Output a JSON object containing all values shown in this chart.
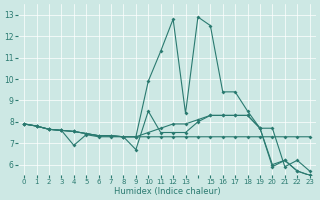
{
  "xlabel": "Humidex (Indice chaleur)",
  "bg_color": "#cde8e4",
  "line_color": "#2a7a70",
  "xlim": [
    -0.5,
    23.5
  ],
  "ylim": [
    5.5,
    13.5
  ],
  "yticks": [
    6,
    7,
    8,
    9,
    10,
    11,
    12,
    13
  ],
  "xticks": [
    0,
    1,
    2,
    3,
    4,
    5,
    6,
    7,
    8,
    9,
    10,
    11,
    12,
    13,
    14,
    15,
    16,
    17,
    18,
    19,
    20,
    21,
    22,
    23
  ],
  "xtick_labels": [
    "0",
    "1",
    "2",
    "3",
    "4",
    "5",
    "6",
    "7",
    "8",
    "9",
    "10",
    "11",
    "12",
    "13",
    "",
    "15",
    "16",
    "17",
    "18",
    "19",
    "20",
    "21",
    "22",
    "23"
  ],
  "line1_x": [
    0,
    1,
    2,
    3,
    4,
    5,
    6,
    7,
    8,
    9,
    10,
    11,
    12,
    13,
    14,
    15,
    16,
    17,
    18,
    19,
    20,
    21,
    22,
    23
  ],
  "line1_y": [
    7.9,
    7.8,
    7.65,
    7.6,
    7.55,
    7.45,
    7.35,
    7.35,
    7.3,
    7.3,
    7.3,
    7.3,
    7.3,
    7.3,
    7.3,
    7.3,
    7.3,
    7.3,
    7.3,
    7.3,
    7.3,
    7.3,
    7.3,
    7.3
  ],
  "line2_x": [
    0,
    1,
    2,
    3,
    4,
    5,
    6,
    7,
    8,
    9,
    10,
    11,
    12,
    13,
    14,
    15,
    16,
    17,
    18,
    19,
    20,
    21,
    22,
    23
  ],
  "line2_y": [
    7.9,
    7.8,
    7.65,
    7.6,
    6.9,
    7.4,
    7.3,
    7.3,
    7.3,
    6.7,
    8.5,
    7.5,
    7.5,
    7.5,
    8.0,
    8.3,
    8.3,
    8.3,
    8.3,
    7.7,
    7.7,
    5.9,
    6.2,
    5.7
  ],
  "line3_x": [
    0,
    1,
    2,
    3,
    4,
    5,
    6,
    7,
    8,
    9,
    10,
    11,
    12,
    13,
    14,
    15,
    16,
    17,
    18,
    19,
    20,
    21,
    22,
    23
  ],
  "line3_y": [
    7.9,
    7.8,
    7.65,
    7.6,
    7.55,
    7.45,
    7.35,
    7.35,
    7.3,
    7.3,
    9.9,
    11.3,
    12.8,
    8.4,
    12.9,
    12.5,
    9.4,
    9.4,
    8.5,
    7.7,
    5.9,
    6.2,
    5.7,
    5.5
  ],
  "line4_x": [
    0,
    1,
    2,
    3,
    4,
    5,
    6,
    7,
    8,
    9,
    10,
    11,
    12,
    13,
    14,
    15,
    16,
    17,
    18,
    19,
    20,
    21,
    22,
    23
  ],
  "line4_y": [
    7.9,
    7.8,
    7.65,
    7.6,
    7.55,
    7.45,
    7.35,
    7.35,
    7.3,
    7.3,
    7.5,
    7.7,
    7.9,
    7.9,
    8.1,
    8.3,
    8.3,
    8.3,
    8.3,
    7.7,
    6.0,
    6.2,
    5.7,
    5.5
  ]
}
